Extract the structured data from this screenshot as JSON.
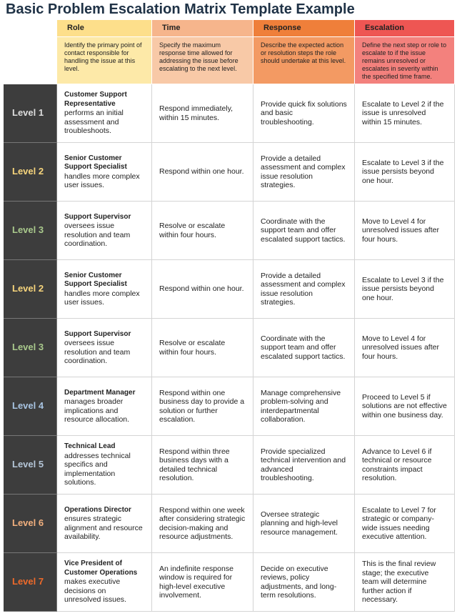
{
  "header": {
    "title": "Basic Problem Escalation Matrix Template Example"
  },
  "table": {
    "columns": [
      {
        "name": "Role",
        "description": "Identify the primary point of contact responsible for handling the issue at this level."
      },
      {
        "name": "Time",
        "description": "Specify the maximum response time allowed for addressing the issue before escalating to the next level."
      },
      {
        "name": "Response",
        "description": "Describe the expected action or resolution steps the role should undertake at this level."
      },
      {
        "name": "Escalation",
        "description": "Define the next step or role to escalate to if the issue remains unresolved or escalates in severity within the specified time frame."
      }
    ],
    "rows": [
      {
        "level": "Level 1",
        "role_title": "Customer Support Representative",
        "role_desc": "performs an initial assessment and troubleshoots.",
        "time": "Respond immediately, within 15 minutes.",
        "response": "Provide quick fix solutions and basic troubleshooting.",
        "escalation": "Escalate to Level 2 if the issue is unresolved within 15 minutes."
      },
      {
        "level": "Level 2",
        "role_title": "Senior Customer Support Specialist",
        "role_desc": "handles more complex user issues.",
        "time": "Respond within one hour.",
        "response": "Provide a detailed assessment and complex issue resolution strategies.",
        "escalation": "Escalate to Level 3 if the issue persists beyond one hour."
      },
      {
        "level": "Level 3",
        "role_title": "Support Supervisor",
        "role_desc": "oversees issue resolution and team coordination.",
        "time": "Resolve or escalate within four hours.",
        "response": "Coordinate with the support team and offer escalated support tactics.",
        "escalation": "Move to Level 4 for unresolved issues after four hours."
      },
      {
        "level": "Level 2",
        "role_title": "Senior Customer Support Specialist",
        "role_desc": "handles more complex user issues.",
        "time": "Respond within one hour.",
        "response": "Provide a detailed assessment and complex issue resolution strategies.",
        "escalation": "Escalate to Level 3 if the issue persists beyond one hour."
      },
      {
        "level": "Level 3",
        "role_title": "Support Supervisor",
        "role_desc": "oversees issue resolution and team coordination.",
        "time": "Resolve or escalate within four hours.",
        "response": "Coordinate with the support team and offer escalated support tactics.",
        "escalation": "Move to Level 4 for unresolved issues after four hours."
      },
      {
        "level": "Level 4",
        "role_title": "Department Manager",
        "role_desc": "manages broader implications and resource allocation.",
        "time": "Respond within one business day to provide a solution or further escalation.",
        "response": "Manage comprehensive problem-solving and interdepartmental collaboration.",
        "escalation": "Proceed to Level 5 if solutions are not effective within one business day."
      },
      {
        "level": "Level 5",
        "role_title": "Technical Lead",
        "role_desc": "addresses technical specifics and implementation solutions.",
        "time": "Respond within three business days with a detailed technical resolution.",
        "response": "Provide specialized technical intervention and advanced troubleshooting.",
        "escalation": "Advance to Level 6 if technical or resource constraints impact resolution."
      },
      {
        "level": "Level 6",
        "role_title": "Operations Director",
        "role_desc": "ensures strategic alignment and resource availability.",
        "time": "Respond within one week after considering strategic decision-making and resource adjustments.",
        "response": "Oversee strategic planning and high-level resource management.",
        "escalation": "Escalate to Level 7 for strategic or company-wide issues needing executive attention."
      },
      {
        "level": "Level 7",
        "role_title": "Vice President of Customer Operations",
        "role_desc": "makes executive decisions on unresolved issues.",
        "time": "An indefinite response window is required for high-level executive involvement.",
        "response": "Decide on executive reviews, policy adjustments, and long-term resolutions.",
        "escalation": "This is the final review stage; the executive team will determine further action if necessary."
      }
    ]
  }
}
